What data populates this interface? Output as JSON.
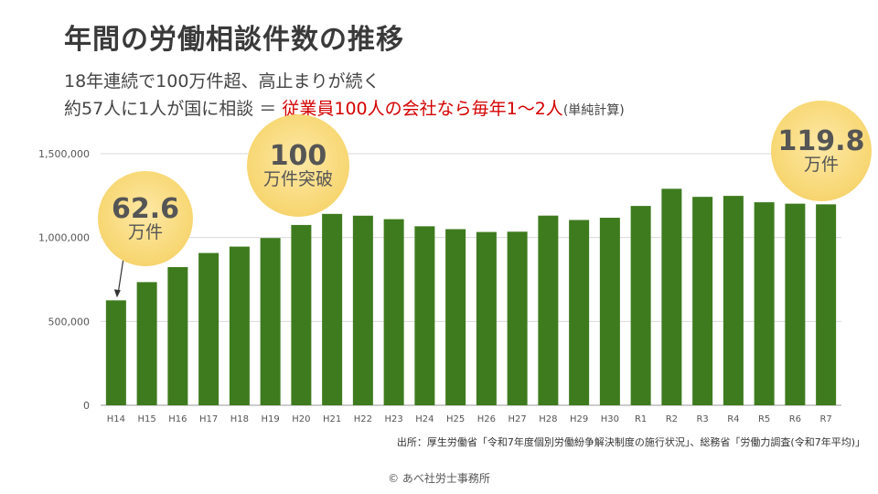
{
  "title": "年間の労働相談件数の推移",
  "subtitle_line1": "18年連続で100万件超、高止まりが続く",
  "subtitle_line2_a": "約57人に1人が国に相談 ＝ ",
  "subtitle_line2_b": "従業員100人の会社なら毎年1～2人",
  "subtitle_line2_c": "(単純計算)",
  "source": "出所：厚生労働省「令和7年度個別労働紛争解決制度の施行状況」、総務省「労働力調査(令和7年平均)」",
  "copyright": "© あべ社労士事務所",
  "callouts": {
    "first": {
      "value": "62.6",
      "unit": "万件"
    },
    "milestone": {
      "value": "100",
      "unit": "万件突破"
    },
    "latest": {
      "value": "119.8",
      "unit": "万件"
    }
  },
  "colors": {
    "bar": "#3e7b1e",
    "accent_red": "#d40000",
    "bubble": "#f8d978"
  },
  "chart_data": {
    "type": "bar",
    "categories": [
      "H14",
      "H15",
      "H16",
      "H17",
      "H18",
      "H19",
      "H20",
      "H21",
      "H22",
      "H23",
      "H24",
      "H25",
      "H26",
      "H27",
      "H28",
      "H29",
      "H30",
      "R1",
      "R2",
      "R3",
      "R4",
      "R5",
      "R6",
      "R7"
    ],
    "values": [
      625572,
      734257,
      823864,
      907869,
      946012,
      997237,
      1075021,
      1141006,
      1130234,
      1109454,
      1067210,
      1050042,
      1033047,
      1034936,
      1130741,
      1104758,
      1117983,
      1188340,
      1290782,
      1242579,
      1248368,
      1210369,
      1201881,
      1198000
    ],
    "ylim": [
      0,
      1500000
    ],
    "yticks": [
      0,
      500000,
      1000000,
      1500000
    ],
    "ytick_labels": [
      "0",
      "500,000",
      "1,000,000",
      "1,500,000"
    ],
    "grid": true
  }
}
